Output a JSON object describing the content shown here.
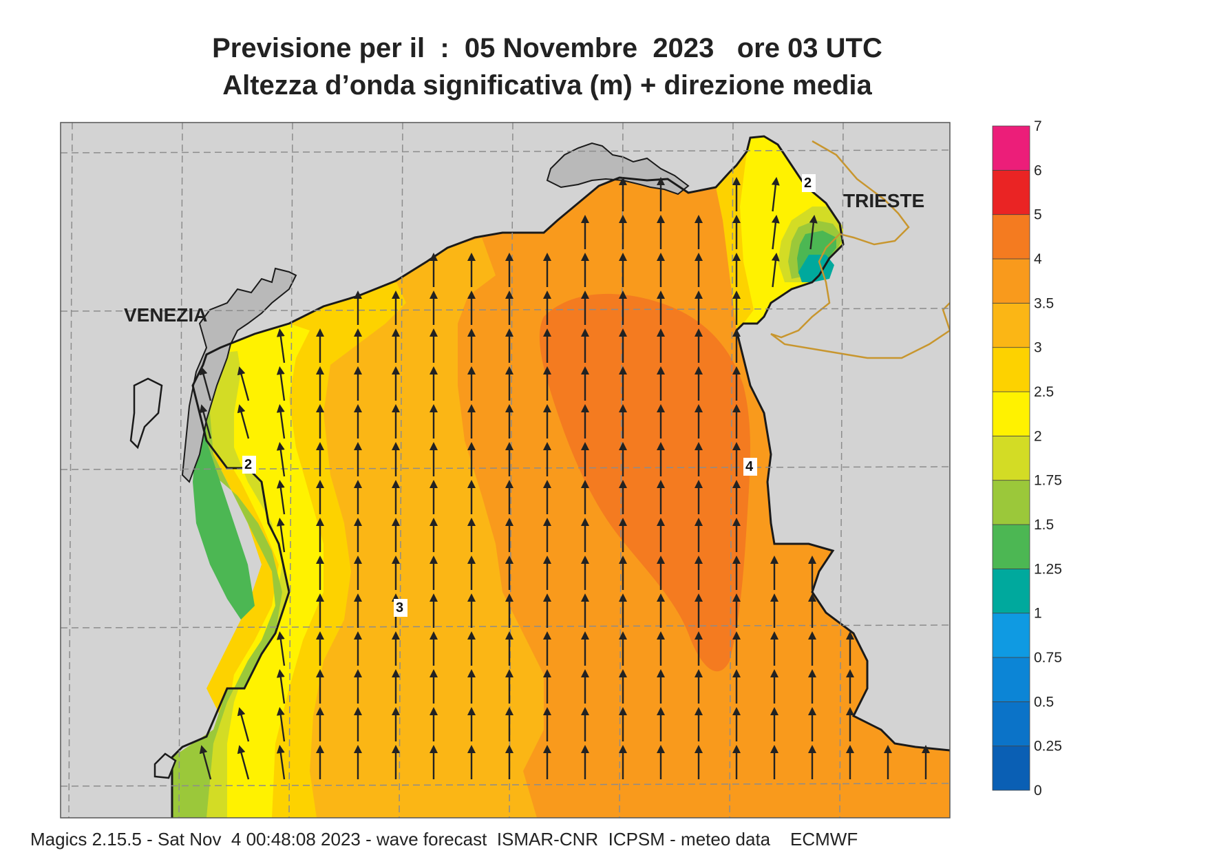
{
  "header": {
    "line1": "Previsione per il  :  05 Novembre  2023   ore 03 UTC",
    "line2": "Altezza d’onda significativa (m) + direzione media"
  },
  "places": {
    "venezia": "VENEZIA",
    "trieste": "TRIESTE"
  },
  "contour_labels": [
    "2",
    "2",
    "3",
    "4"
  ],
  "colorbar": {
    "ticks": [
      "0",
      "0.25",
      "0.5",
      "0.75",
      "1",
      "1.25",
      "1.5",
      "1.75",
      "2",
      "2.5",
      "3",
      "3.5",
      "4",
      "5",
      "6",
      "7"
    ],
    "colors": [
      "#0a5fb4",
      "#0b73c8",
      "#0c85d6",
      "#0f9ae2",
      "#00a99d",
      "#4cb753",
      "#9bc83a",
      "#d3dc25",
      "#fff200",
      "#fdd200",
      "#fbb615",
      "#f99a1c",
      "#f47b20",
      "#ea2424",
      "#ec1e79"
    ]
  },
  "colors": {
    "land": "#d3d3d3",
    "lagoon": "#b9b9b9",
    "coast": "#1a1a1a",
    "border": "#c8962e",
    "arrow": "#222222"
  },
  "footer": "Magics 2.15.5 - Sat Nov  4 00:48:08 2023 - wave forecast  ISMAR-CNR  ICPSM - meteo data    ECMWF"
}
